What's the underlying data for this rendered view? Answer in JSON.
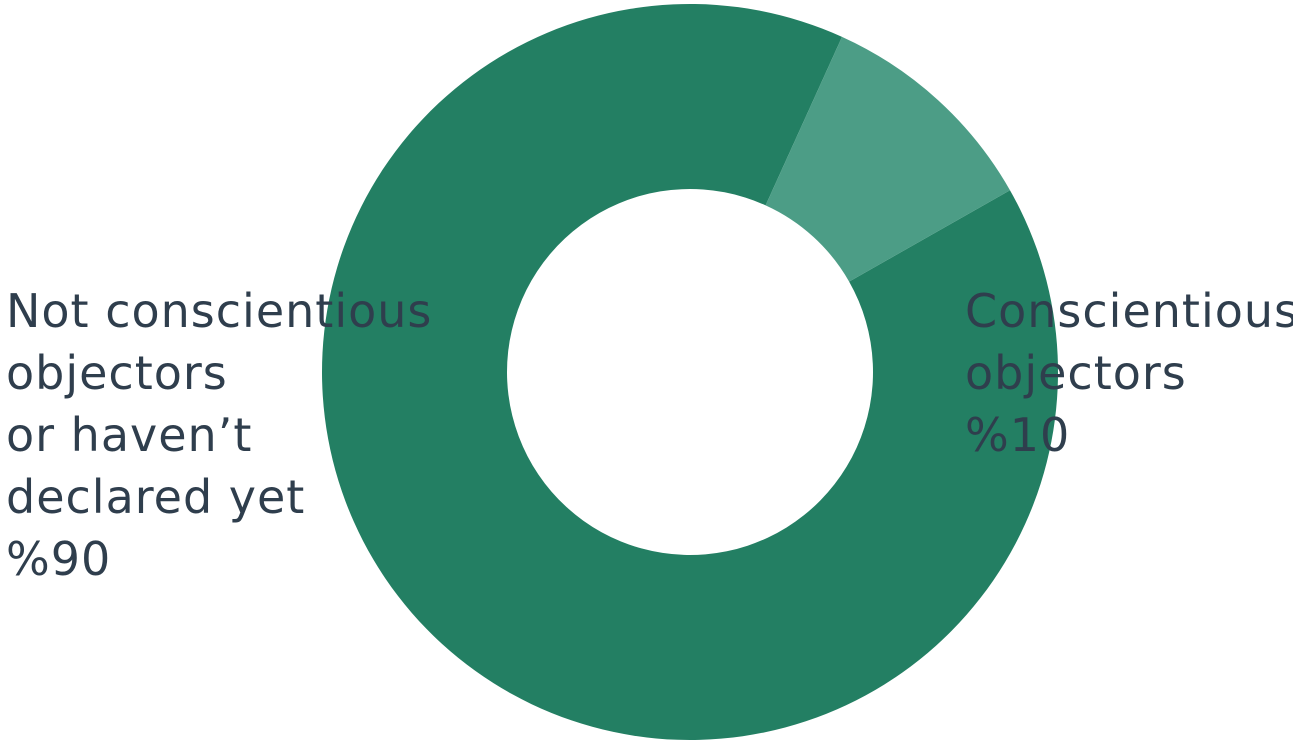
{
  "chart_data": {
    "type": "pie",
    "donut": true,
    "title": "",
    "slices": [
      {
        "label_lines": [
          "Not conscientious",
          "objectors",
          "or haven’t",
          "declared yet"
        ],
        "value_label": "%90",
        "value": 90,
        "color": "#237f63"
      },
      {
        "label_lines": [
          "Conscientious",
          "objectors"
        ],
        "value_label": "%10",
        "value": 10,
        "color": "#4c9d86"
      }
    ],
    "legend": "none"
  }
}
